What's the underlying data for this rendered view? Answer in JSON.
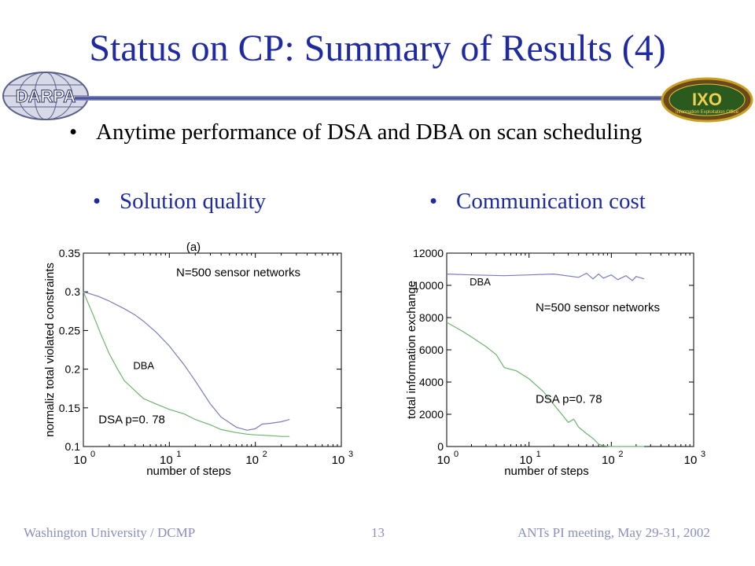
{
  "slide": {
    "title": "Status on CP: Summary of Results (4)",
    "bullet": "Anytime performance of DSA and DBA on scan scheduling",
    "left_heading": "Solution quality",
    "right_heading": "Communication cost",
    "logo_left_text": "DARPA",
    "logo_right_text": "Information Exploitation Office",
    "logo_right_letters": "IXO",
    "footer_left": "Washington University / DCMP",
    "footer_center": "13",
    "footer_right": "ANTs PI meeting, May 29-31, 2002"
  },
  "colors": {
    "title": "#1f2aa0",
    "dba": "#7b7bc0",
    "dsa": "#6fb56f",
    "footer": "#8a8fbf"
  },
  "chart_data": [
    {
      "type": "line",
      "title": "(a)",
      "xlabel": "number of steps",
      "ylabel": "normaliz total violated constraints",
      "xscale": "log",
      "xlim": [
        1,
        1000
      ],
      "ylim": [
        0.1,
        0.35
      ],
      "xticks": [
        1,
        10,
        100,
        1000
      ],
      "xtick_labels": [
        {
          "base": "10",
          "exp": "0"
        },
        {
          "base": "10",
          "exp": "1"
        },
        {
          "base": "10",
          "exp": "2"
        },
        {
          "base": "10",
          "exp": "3"
        }
      ],
      "yticks": [
        0.1,
        0.15,
        0.2,
        0.25,
        0.3,
        0.35
      ],
      "ytick_labels": [
        "0.1",
        "0.15",
        "0.2",
        "0.25",
        "0.3",
        "0.35"
      ],
      "annotations": [
        {
          "text": "N=500 sensor networks",
          "x": 12,
          "y": 0.32
        },
        {
          "text": "DBA",
          "x": 3.8,
          "y": 0.2
        },
        {
          "text": "DSA p=0. 78",
          "x": 1.5,
          "y": 0.13
        }
      ],
      "series": [
        {
          "label": "DBA",
          "x": [
            1,
            1.5,
            2,
            3,
            4,
            5,
            7,
            10,
            15,
            20,
            30,
            40,
            60,
            80,
            100,
            120,
            150,
            200,
            250
          ],
          "y": [
            0.3,
            0.294,
            0.288,
            0.278,
            0.27,
            0.262,
            0.248,
            0.23,
            0.205,
            0.185,
            0.155,
            0.138,
            0.125,
            0.121,
            0.123,
            0.129,
            0.13,
            0.132,
            0.135
          ]
        },
        {
          "label": "DSA p=0. 78",
          "x": [
            1,
            1.3,
            1.6,
            2,
            2.5,
            3,
            4,
            5,
            7,
            10,
            15,
            20,
            30,
            40,
            60,
            80,
            100,
            150,
            200,
            250
          ],
          "y": [
            0.3,
            0.27,
            0.245,
            0.22,
            0.2,
            0.185,
            0.172,
            0.162,
            0.155,
            0.148,
            0.142,
            0.135,
            0.128,
            0.122,
            0.118,
            0.116,
            0.115,
            0.114,
            0.113,
            0.113
          ]
        }
      ]
    },
    {
      "type": "line",
      "title": "",
      "xlabel": "number of steps",
      "ylabel": "total information exchange",
      "xscale": "log",
      "xlim": [
        1,
        1000
      ],
      "ylim": [
        0,
        12000
      ],
      "xticks": [
        1,
        10,
        100,
        1000
      ],
      "xtick_labels": [
        {
          "base": "10",
          "exp": "0"
        },
        {
          "base": "10",
          "exp": "1"
        },
        {
          "base": "10",
          "exp": "2"
        },
        {
          "base": "10",
          "exp": "3"
        }
      ],
      "yticks": [
        0,
        2000,
        4000,
        6000,
        8000,
        10000,
        12000
      ],
      "ytick_labels": [
        "0",
        "2000",
        "4000",
        "6000",
        "8000",
        "10000",
        "12000"
      ],
      "annotations": [
        {
          "text": "N=500 sensor networks",
          "x": 12,
          "y": 8400
        },
        {
          "text": "DBA",
          "x": 1.9,
          "y": 10000
        },
        {
          "text": "DSA p=0. 78",
          "x": 12,
          "y": 2700
        }
      ],
      "series": [
        {
          "label": "DBA",
          "x": [
            1,
            2,
            5,
            10,
            20,
            40,
            50,
            60,
            70,
            80,
            100,
            120,
            150,
            180,
            200,
            250
          ],
          "y": [
            10700,
            10650,
            10600,
            10650,
            10700,
            10500,
            10750,
            10400,
            10700,
            10450,
            10650,
            10350,
            10600,
            10300,
            10550,
            10400
          ]
        },
        {
          "label": "DSA p=0. 78",
          "x": [
            1,
            1.5,
            2,
            3,
            4,
            5,
            7,
            10,
            15,
            20,
            25,
            30,
            35,
            40,
            50,
            60,
            70,
            80,
            100,
            150,
            250
          ],
          "y": [
            7700,
            7200,
            6800,
            6200,
            5700,
            4900,
            4700,
            4200,
            3400,
            2600,
            2000,
            1500,
            1700,
            1200,
            800,
            500,
            150,
            50,
            0,
            0,
            0
          ]
        }
      ]
    }
  ]
}
